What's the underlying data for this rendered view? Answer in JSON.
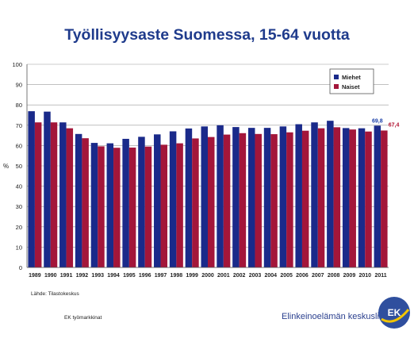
{
  "colors": {
    "men": "#1a2a8a",
    "women": "#a3163a",
    "title": "#1f3b8c",
    "men_label": "#1a3fa8",
    "women_label": "#b0102f",
    "logo_blue": "#2f4f9e",
    "logo_accent": "#f2c500"
  },
  "footer": {
    "source": "Lähde: Tilastokeskus",
    "left": "EK työmarkkinat",
    "org": "Elinkeinoelämän keskusliitto",
    "logo_text": "EK"
  },
  "chart_data": {
    "type": "bar",
    "title": "Työllisyysaste Suomessa, 15-64 vuotta",
    "ylabel": "%",
    "ylim": [
      0,
      100
    ],
    "yticks": [
      "0",
      "10",
      "20",
      "30",
      "40",
      "50",
      "60",
      "70",
      "80",
      "90",
      "100"
    ],
    "grid": true,
    "legend": "top-right",
    "categories": [
      "1989",
      "1990",
      "1991",
      "1992",
      "1993",
      "1994",
      "1995",
      "1996",
      "1997",
      "1998",
      "1999",
      "2000",
      "2001",
      "2002",
      "2003",
      "2004",
      "2005",
      "2006",
      "2007",
      "2008",
      "2009",
      "2010",
      "2011"
    ],
    "series": [
      {
        "name": "Miehet",
        "values": [
          76.9,
          76.7,
          71.4,
          65.7,
          61.3,
          61.1,
          63.3,
          64.3,
          65.5,
          67.0,
          68.4,
          69.4,
          70.0,
          69.1,
          68.7,
          68.7,
          69.4,
          70.5,
          71.4,
          72.2,
          68.6,
          68.5,
          69.8
        ]
      },
      {
        "name": "Naiset",
        "values": [
          71.4,
          71.4,
          68.5,
          63.6,
          59.6,
          58.9,
          59.0,
          59.5,
          60.4,
          61.1,
          63.5,
          64.2,
          65.4,
          66.1,
          65.7,
          65.6,
          66.5,
          67.3,
          68.5,
          69.0,
          67.9,
          66.9,
          67.4
        ]
      }
    ],
    "annotations": [
      {
        "series": "Miehet",
        "category": "2011",
        "text": "69,8"
      },
      {
        "series": "Naiset",
        "category": "2011",
        "text": "67,4"
      }
    ]
  }
}
